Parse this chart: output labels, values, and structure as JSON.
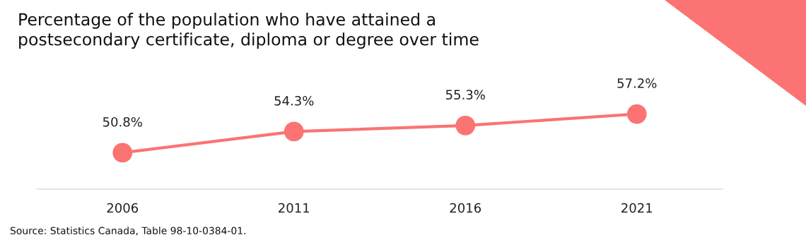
{
  "chart_data": {
    "type": "line",
    "title": "Percentage of the population who have attained a\npostsecondary certificate, diploma or degree over time",
    "categories": [
      "2006",
      "2011",
      "2016",
      "2021"
    ],
    "series": [
      {
        "color": "#fb7373",
        "values": [
          50.8,
          54.3,
          55.3,
          57.2
        ],
        "value_labels": [
          "50.8%",
          "54.3%",
          "55.3%",
          "57.2%"
        ]
      }
    ],
    "tick_labels": "x",
    "marker": "circle",
    "line_style": "solid",
    "grid": false,
    "annotations": [
      "Source: Statistics Canada, Table 98-10-0384-01."
    ]
  }
}
